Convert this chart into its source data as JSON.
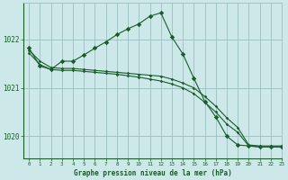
{
  "background_color": "#cce8e8",
  "grid_color": "#9bbfbf",
  "line_color": "#1a5c2a",
  "title": "Graphe pression niveau de la mer (hPa)",
  "xlim": [
    -0.5,
    23
  ],
  "ylim": [
    1019.55,
    1022.75
  ],
  "yticks": [
    1020,
    1021,
    1022
  ],
  "xticks": [
    0,
    1,
    2,
    3,
    4,
    5,
    6,
    7,
    8,
    9,
    10,
    11,
    12,
    13,
    14,
    15,
    16,
    17,
    18,
    19,
    20,
    21,
    22,
    23
  ],
  "series1": {
    "x": [
      0,
      1,
      2,
      3,
      4,
      5,
      6,
      7,
      8,
      9,
      10,
      11,
      12,
      13,
      14,
      15,
      16,
      17,
      18,
      19,
      20,
      21,
      22,
      23
    ],
    "y": [
      1021.78,
      1021.55,
      1021.42,
      1021.4,
      1021.4,
      1021.38,
      1021.36,
      1021.34,
      1021.32,
      1021.3,
      1021.28,
      1021.26,
      1021.24,
      1021.18,
      1021.1,
      1021.0,
      1020.82,
      1020.62,
      1020.38,
      1020.18,
      1019.82,
      1019.8,
      1019.8,
      1019.8
    ]
  },
  "series2": {
    "x": [
      0,
      1,
      2,
      3,
      4,
      5,
      6,
      7,
      8,
      9,
      10,
      11,
      12,
      13,
      14,
      15,
      16,
      17,
      18,
      19,
      20,
      21,
      22,
      23
    ],
    "y": [
      1021.72,
      1021.48,
      1021.38,
      1021.36,
      1021.36,
      1021.34,
      1021.32,
      1021.3,
      1021.28,
      1021.25,
      1021.22,
      1021.18,
      1021.14,
      1021.08,
      1021.0,
      1020.88,
      1020.7,
      1020.5,
      1020.25,
      1020.08,
      1019.8,
      1019.78,
      1019.78,
      1019.78
    ]
  },
  "series3": {
    "x": [
      0,
      1,
      2,
      3,
      4,
      5,
      6,
      7,
      8,
      9,
      10,
      11,
      12,
      13,
      14,
      15,
      16,
      17,
      18,
      19,
      20,
      21,
      22,
      23
    ],
    "y": [
      1021.82,
      1021.45,
      1021.38,
      1021.55,
      1021.55,
      1021.68,
      1021.82,
      1021.95,
      1022.1,
      1022.22,
      1022.32,
      1022.48,
      1022.55,
      1022.05,
      1021.7,
      1021.2,
      1020.72,
      1020.4,
      1020.0,
      1019.82,
      1019.8,
      1019.78,
      1019.78,
      1019.78
    ]
  }
}
